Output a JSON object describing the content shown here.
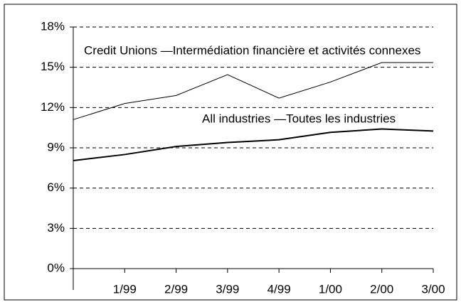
{
  "chart_data": {
    "type": "line",
    "categories": [
      null,
      "1/99",
      "2/99",
      "3/99",
      "4/99",
      "1/00",
      "2/00",
      "3/00"
    ],
    "series": [
      {
        "name": "Credit Unions —Intermédiation financière et activités connexes",
        "color": "#000000",
        "line_width": 1,
        "values": [
          11.1,
          12.3,
          12.9,
          14.45,
          12.7,
          13.9,
          15.35,
          15.35
        ]
      },
      {
        "name": "All industries —Toutes les industries",
        "color": "#000000",
        "line_width": 2,
        "values": [
          8.05,
          8.5,
          9.1,
          9.4,
          9.6,
          10.15,
          10.4,
          10.25
        ]
      }
    ],
    "ylim": [
      0,
      18
    ],
    "yticks": [
      {
        "value": 0,
        "label": "0%"
      },
      {
        "value": 3,
        "label": "3%"
      },
      {
        "value": 6,
        "label": "6%"
      },
      {
        "value": 9,
        "label": "9%"
      },
      {
        "value": 12,
        "label": "12%"
      },
      {
        "value": 15,
        "label": "15%"
      },
      {
        "value": 18,
        "label": "18%"
      }
    ],
    "grid": true
  }
}
